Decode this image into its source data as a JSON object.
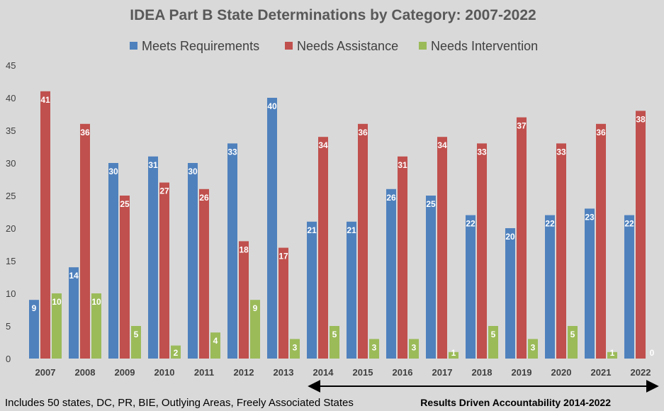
{
  "chart_data": {
    "type": "bar",
    "title": "IDEA Part B State Determinations by Category: 2007-2022",
    "categories": [
      "2007",
      "2008",
      "2009",
      "2010",
      "2011",
      "2012",
      "2013",
      "2014",
      "2015",
      "2016",
      "2017",
      "2018",
      "2019",
      "2020",
      "2021",
      "2022"
    ],
    "series": [
      {
        "name": "Meets Requirements",
        "color": "#4f81bd",
        "values": [
          9,
          14,
          30,
          31,
          30,
          33,
          40,
          21,
          21,
          26,
          25,
          22,
          20,
          22,
          23,
          22
        ]
      },
      {
        "name": "Needs Assistance",
        "color": "#c0504d",
        "values": [
          41,
          36,
          25,
          27,
          26,
          18,
          17,
          34,
          36,
          31,
          34,
          33,
          37,
          33,
          36,
          38
        ]
      },
      {
        "name": "Needs Intervention",
        "color": "#9bbb59",
        "values": [
          10,
          10,
          5,
          2,
          4,
          9,
          3,
          5,
          3,
          3,
          1,
          5,
          3,
          5,
          1,
          0
        ]
      }
    ],
    "ylim": [
      0,
      45
    ],
    "yticks": [
      0,
      5,
      10,
      15,
      20,
      25,
      30,
      35,
      40,
      45
    ],
    "grid": false,
    "legend_position": "top",
    "data_labels": true,
    "annotations": {
      "footnote": "Includes 50 states, DC, PR, BIE, Outlying Areas, Freely Associated States",
      "bracket_label": "Results Driven Accountability 2014-2022",
      "bracket_range": [
        "2014",
        "2022"
      ]
    }
  }
}
